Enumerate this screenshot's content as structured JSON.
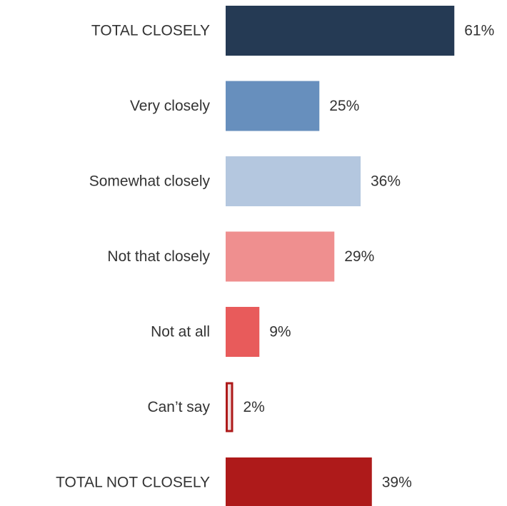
{
  "chart_data": {
    "type": "bar",
    "orientation": "horizontal",
    "categories": [
      "TOTAL CLOSELY",
      "Very closely",
      "Somewhat closely",
      "Not that closely",
      "Not at all",
      "Can’t say",
      "TOTAL NOT CLOSELY"
    ],
    "values": [
      61,
      25,
      36,
      29,
      9,
      2,
      39
    ],
    "value_labels": [
      "61%",
      "25%",
      "36%",
      "29%",
      "9%",
      "2%",
      "39%"
    ],
    "colors": [
      "#253a54",
      "#678fbd",
      "#b4c7df",
      "#ef8f8f",
      "#e85b5b",
      "#f0dede",
      "#ae1a1a"
    ],
    "outline_colors": [
      "",
      "",
      "",
      "",
      "",
      "#ae1a1a",
      ""
    ],
    "xlim": [
      0,
      100
    ],
    "grid": false,
    "legend": "none"
  }
}
